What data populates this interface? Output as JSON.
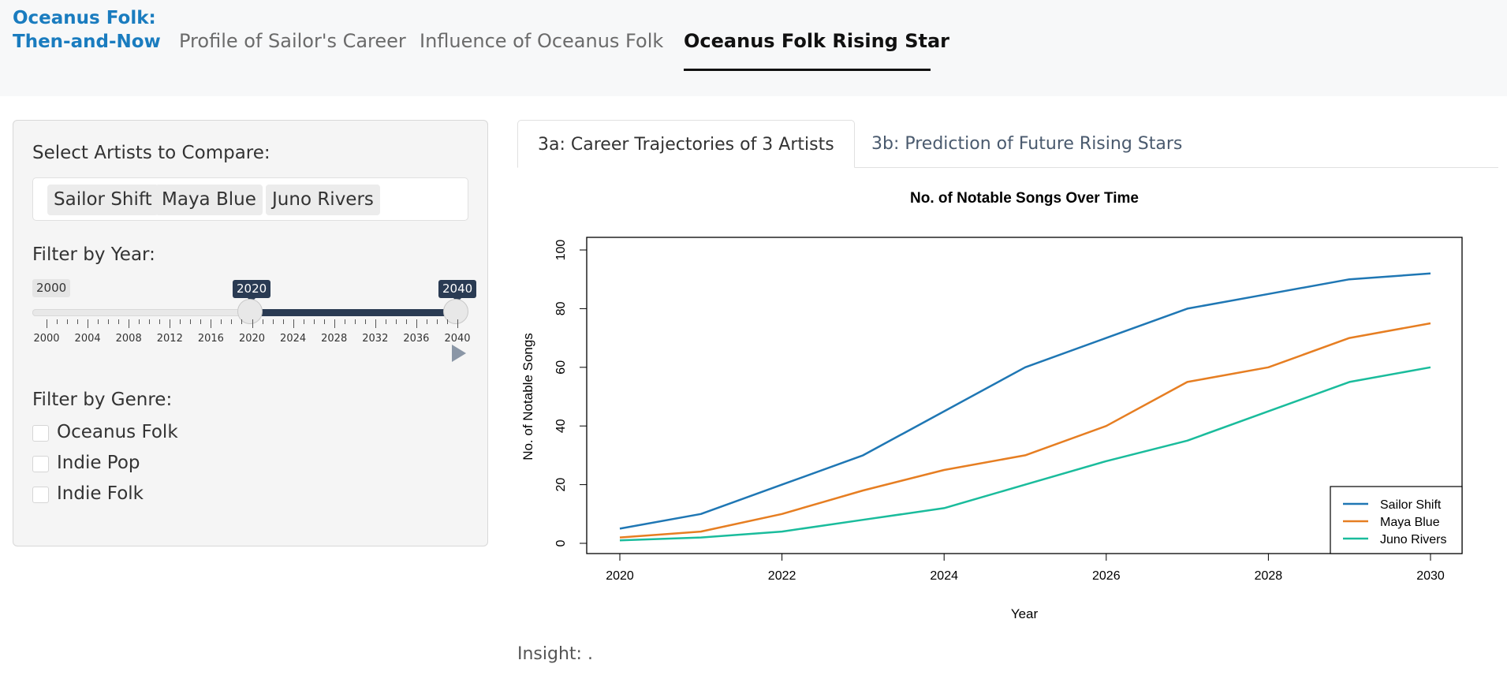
{
  "app": {
    "brand_line1": "Oceanus Folk:",
    "brand_line2": "Then-and-Now"
  },
  "nav": {
    "tabs": [
      {
        "label": "Profile of Sailor's Career",
        "active": false
      },
      {
        "label": "Influence of Oceanus Folk",
        "active": false
      },
      {
        "label": "Oceanus Folk Rising Star",
        "active": true
      }
    ]
  },
  "sidebar": {
    "artists_label": "Select Artists to Compare:",
    "selected_artists": [
      "Sailor Shift",
      "Maya Blue",
      "Juno Rivers"
    ],
    "year_label": "Filter by Year:",
    "year_slider": {
      "min": 2000,
      "max": 2040,
      "min_label": "2000",
      "from_value": "2020",
      "to_value": "2040",
      "from": 2020,
      "to": 2040,
      "ticks": [
        "2000",
        "2004",
        "2008",
        "2012",
        "2016",
        "2020",
        "2024",
        "2028",
        "2032",
        "2036",
        "2040"
      ],
      "play_icon": "play-icon"
    },
    "genre_label": "Filter by Genre:",
    "genres": [
      {
        "label": "Oceanus Folk",
        "checked": false
      },
      {
        "label": "Indie Pop",
        "checked": false
      },
      {
        "label": "Indie Folk",
        "checked": false
      }
    ]
  },
  "subtabs": [
    {
      "label": "3a: Career Trajectories of 3 Artists",
      "active": true
    },
    {
      "label": "3b: Prediction of Future Rising Stars",
      "active": false
    }
  ],
  "chart_data": {
    "type": "line",
    "title": "No. of Notable Songs Over Time",
    "xlabel": "Year",
    "ylabel": "No. of Notable Songs",
    "x": [
      2020,
      2021,
      2022,
      2023,
      2024,
      2025,
      2026,
      2027,
      2028,
      2029,
      2030
    ],
    "xlim": [
      2020,
      2030
    ],
    "ylim": [
      0,
      100
    ],
    "x_ticks": [
      "2020",
      "2022",
      "2024",
      "2026",
      "2028",
      "2030"
    ],
    "y_ticks": [
      "0",
      "20",
      "40",
      "60",
      "80",
      "100"
    ],
    "grid": false,
    "legend_position": "bottom-right",
    "series": [
      {
        "name": "Sailor Shift",
        "color": "#1f77b4",
        "values": [
          5,
          10,
          20,
          30,
          45,
          60,
          70,
          80,
          85,
          90,
          92
        ]
      },
      {
        "name": "Maya Blue",
        "color": "#e67e22",
        "values": [
          2,
          4,
          10,
          18,
          25,
          30,
          40,
          55,
          60,
          70,
          75
        ]
      },
      {
        "name": "Juno Rivers",
        "color": "#1abc9c",
        "values": [
          1,
          2,
          4,
          8,
          12,
          20,
          28,
          35,
          45,
          55,
          60
        ]
      }
    ]
  },
  "insight": {
    "text": "Insight: ."
  }
}
